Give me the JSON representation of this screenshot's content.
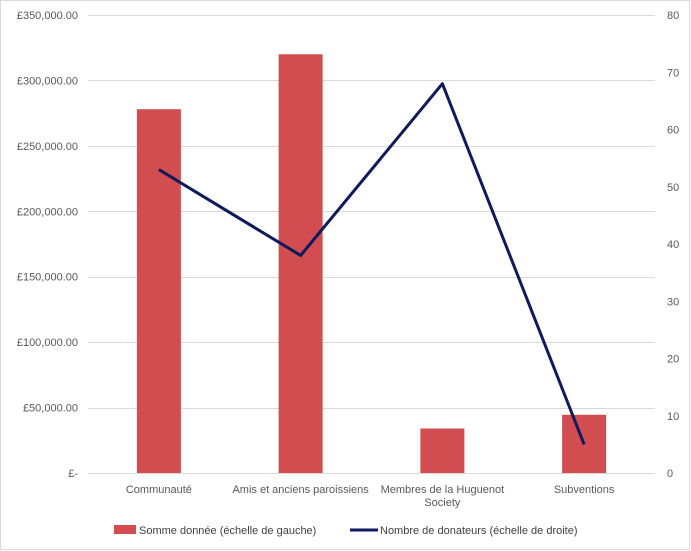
{
  "chart_data": {
    "type": "bar",
    "categories": [
      [
        "Communauté"
      ],
      [
        "Amis et anciens paroissiens"
      ],
      [
        "Membres de la Huguenot",
        "Society"
      ],
      [
        "Subventions"
      ]
    ],
    "series": [
      {
        "name": "Somme donnée (échelle de gauche)",
        "type": "bar",
        "axis": "left",
        "color": "#d24d4f",
        "values": [
          278000,
          320000,
          34000,
          44500
        ]
      },
      {
        "name": "Nombre de donateurs (échelle de droite)",
        "type": "line",
        "axis": "right",
        "color": "#0f1a5c",
        "values": [
          53,
          38,
          68,
          5
        ]
      }
    ],
    "left_axis": {
      "min": 0,
      "max": 350000,
      "ticks": [
        0,
        50000,
        100000,
        150000,
        200000,
        250000,
        300000,
        350000
      ],
      "tick_labels": [
        "£-",
        "£50,000.00",
        "£100,000.00",
        "£150,000.00",
        "£200,000.00",
        "£250,000.00",
        "£300,000.00",
        "£350,000.00"
      ]
    },
    "right_axis": {
      "min": 0,
      "max": 80,
      "ticks": [
        0,
        10,
        20,
        30,
        40,
        50,
        60,
        70,
        80
      ],
      "tick_labels": [
        "0",
        "10",
        "20",
        "30",
        "40",
        "50",
        "60",
        "70",
        "80"
      ]
    },
    "grid": true,
    "legend_position": "bottom"
  }
}
